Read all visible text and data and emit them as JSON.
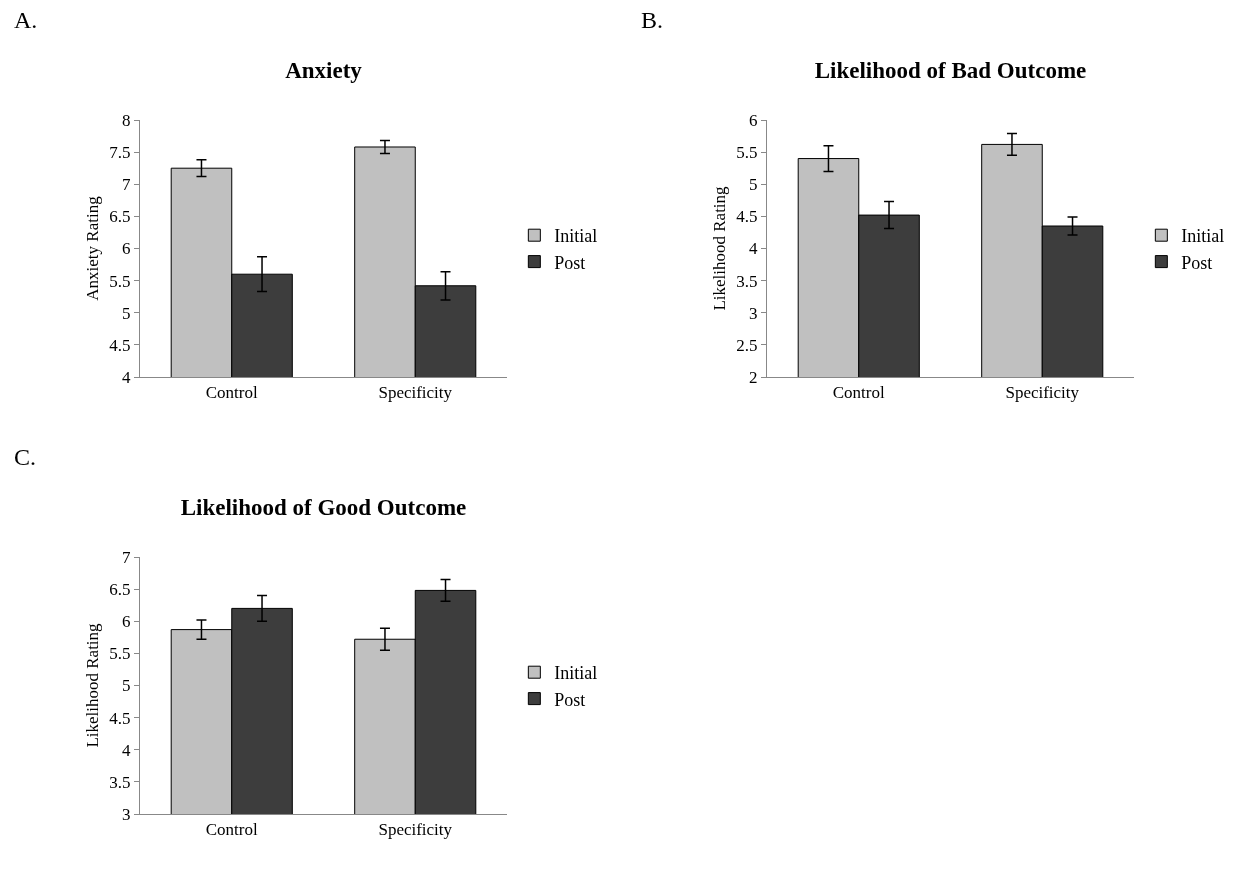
{
  "chart_data": [
    {
      "type": "bar",
      "title": "Anxiety",
      "ylabel": "Anxiety Rating",
      "annotations": [
        "A."
      ],
      "categories": [
        "Control",
        "Specificity"
      ],
      "series": [
        {
          "name": "Initial",
          "color": "#c0c0c0",
          "values": [
            7.25,
            7.58
          ],
          "errors": [
            0.13,
            0.1
          ]
        },
        {
          "name": "Post",
          "color": "#3d3d3d",
          "values": [
            5.6,
            5.42
          ],
          "errors": [
            0.27,
            0.22
          ]
        }
      ],
      "ylim": [
        4,
        8
      ],
      "yticks": [
        4,
        4.5,
        5,
        5.5,
        6,
        6.5,
        7,
        7.5,
        8
      ],
      "grid": false,
      "legend": "right"
    },
    {
      "type": "bar",
      "title": "Likelihood of Bad Outcome",
      "ylabel": "Likelihood Rating",
      "annotations": [
        "B."
      ],
      "categories": [
        "Control",
        "Specificity"
      ],
      "series": [
        {
          "name": "Initial",
          "color": "#c0c0c0",
          "values": [
            5.4,
            5.62
          ],
          "errors": [
            0.2,
            0.17
          ]
        },
        {
          "name": "Post",
          "color": "#3d3d3d",
          "values": [
            4.52,
            4.35
          ],
          "errors": [
            0.21,
            0.14
          ]
        }
      ],
      "ylim": [
        2,
        6
      ],
      "yticks": [
        2,
        2.5,
        3,
        3.5,
        4,
        4.5,
        5,
        5.5,
        6
      ],
      "grid": false,
      "legend": "right"
    },
    {
      "type": "bar",
      "title": "Likelihood of Good Outcome",
      "ylabel": "Likelihood Rating",
      "annotations": [
        "C."
      ],
      "categories": [
        "Control",
        "Specificity"
      ],
      "series": [
        {
          "name": "Initial",
          "color": "#c0c0c0",
          "values": [
            5.87,
            5.72
          ],
          "errors": [
            0.15,
            0.17
          ]
        },
        {
          "name": "Post",
          "color": "#3d3d3d",
          "values": [
            6.2,
            6.48
          ],
          "errors": [
            0.2,
            0.17
          ]
        }
      ],
      "ylim": [
        3,
        7
      ],
      "yticks": [
        3,
        3.5,
        4,
        4.5,
        5,
        5.5,
        6,
        6.5,
        7
      ],
      "grid": false,
      "legend": "right"
    }
  ]
}
